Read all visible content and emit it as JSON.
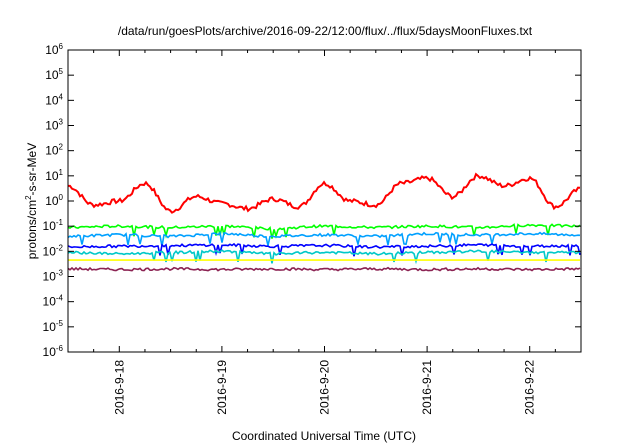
{
  "chart_data": {
    "type": "line",
    "title": "/data/run/goesPlots/archive/2016-09-22/12:00/flux/../flux/5daysMoonFluxes.txt",
    "xlabel": "Coordinated Universal Time (UTC)",
    "ylabel_parts": [
      "protons/cm",
      "2",
      "-s-sr-MeV"
    ],
    "y_scale": "log",
    "ylim": [
      1e-06,
      1000000.0
    ],
    "y_ticks": [
      {
        "base": "10",
        "exp": "-6",
        "value": 1e-06
      },
      {
        "base": "10",
        "exp": "-5",
        "value": 1e-05
      },
      {
        "base": "10",
        "exp": "-4",
        "value": 0.0001
      },
      {
        "base": "10",
        "exp": "-3",
        "value": 0.001
      },
      {
        "base": "10",
        "exp": "-2",
        "value": 0.01
      },
      {
        "base": "10",
        "exp": "-1",
        "value": 0.1
      },
      {
        "base": "10",
        "exp": "0",
        "value": 1
      },
      {
        "base": "10",
        "exp": "1",
        "value": 10
      },
      {
        "base": "10",
        "exp": "2",
        "value": 100
      },
      {
        "base": "10",
        "exp": "3",
        "value": 1000
      },
      {
        "base": "10",
        "exp": "4",
        "value": 10000
      },
      {
        "base": "10",
        "exp": "5",
        "value": 100000
      },
      {
        "base": "10",
        "exp": "6",
        "value": 1000000
      }
    ],
    "xlim": [
      "2016-09-17 12:00",
      "2016-09-22 12:00"
    ],
    "x_ticks": [
      "2016-9-18",
      "2016-9-19",
      "2016-9-20",
      "2016-9-21",
      "2016-9-22"
    ],
    "grid": false,
    "legend": "none",
    "series": [
      {
        "color": "#ff0000",
        "x": [
          "2016-09-17 12:00",
          "2016-09-17 18:00",
          "2016-09-18 00:00",
          "2016-09-18 06:00",
          "2016-09-18 12:00",
          "2016-09-18 18:00",
          "2016-09-19 00:00",
          "2016-09-19 06:00",
          "2016-09-19 12:00",
          "2016-09-19 18:00",
          "2016-09-20 00:00",
          "2016-09-20 06:00",
          "2016-09-20 12:00",
          "2016-09-20 18:00",
          "2016-09-21 00:00",
          "2016-09-21 06:00",
          "2016-09-21 12:00",
          "2016-09-21 18:00",
          "2016-09-22 00:00",
          "2016-09-22 06:00",
          "2016-09-22 12:00"
        ],
        "values": [
          4,
          0.7,
          1,
          5,
          0.4,
          1.5,
          0.8,
          0.5,
          1.2,
          0.6,
          5,
          1,
          0.7,
          5,
          8,
          1.5,
          10,
          4,
          8,
          0.6,
          3
        ]
      },
      {
        "color": "#00ff00",
        "x": [
          "2016-09-17 12:00",
          "2016-09-18 00:00",
          "2016-09-18 12:00",
          "2016-09-19 00:00",
          "2016-09-19 12:00",
          "2016-09-20 00:00",
          "2016-09-20 12:00",
          "2016-09-21 00:00",
          "2016-09-21 12:00",
          "2016-09-22 00:00",
          "2016-09-22 12:00"
        ],
        "values": [
          0.09,
          0.1,
          0.09,
          0.1,
          0.08,
          0.1,
          0.09,
          0.1,
          0.09,
          0.11,
          0.1
        ]
      },
      {
        "color": "#00a0ff",
        "x": [
          "2016-09-17 12:00",
          "2016-09-18 00:00",
          "2016-09-18 12:00",
          "2016-09-19 00:00",
          "2016-09-19 12:00",
          "2016-09-20 00:00",
          "2016-09-20 12:00",
          "2016-09-21 00:00",
          "2016-09-21 12:00",
          "2016-09-22 00:00",
          "2016-09-22 12:00"
        ],
        "values": [
          0.04,
          0.045,
          0.04,
          0.05,
          0.04,
          0.045,
          0.04,
          0.05,
          0.045,
          0.05,
          0.045
        ]
      },
      {
        "color": "#0000ff",
        "x": [
          "2016-09-17 12:00",
          "2016-09-18 00:00",
          "2016-09-18 12:00",
          "2016-09-19 00:00",
          "2016-09-19 12:00",
          "2016-09-20 00:00",
          "2016-09-20 12:00",
          "2016-09-21 00:00",
          "2016-09-21 12:00",
          "2016-09-22 00:00",
          "2016-09-22 12:00"
        ],
        "values": [
          0.015,
          0.016,
          0.017,
          0.018,
          0.016,
          0.017,
          0.015,
          0.016,
          0.018,
          0.016,
          0.017
        ]
      },
      {
        "color": "#00c8c8",
        "x": [
          "2016-09-17 12:00",
          "2016-09-18 00:00",
          "2016-09-18 12:00",
          "2016-09-19 00:00",
          "2016-09-19 12:00",
          "2016-09-20 00:00",
          "2016-09-20 12:00",
          "2016-09-21 00:00",
          "2016-09-21 12:00",
          "2016-09-22 00:00",
          "2016-09-22 12:00"
        ],
        "values": [
          0.009,
          0.008,
          0.009,
          0.01,
          0.008,
          0.009,
          0.008,
          0.009,
          0.01,
          0.009,
          0.009
        ]
      },
      {
        "color": "#ffff00",
        "x": [
          "2016-09-17 12:00",
          "2016-09-18 12:00",
          "2016-09-19 12:00",
          "2016-09-20 12:00",
          "2016-09-21 12:00",
          "2016-09-22 12:00"
        ],
        "values": [
          0.0045,
          0.0045,
          0.0045,
          0.0045,
          0.0045,
          0.0045
        ]
      },
      {
        "color": "#8b2252",
        "x": [
          "2016-09-17 12:00",
          "2016-09-18 00:00",
          "2016-09-18 12:00",
          "2016-09-19 00:00",
          "2016-09-19 12:00",
          "2016-09-20 00:00",
          "2016-09-20 12:00",
          "2016-09-21 00:00",
          "2016-09-21 12:00",
          "2016-09-22 00:00",
          "2016-09-22 12:00"
        ],
        "values": [
          0.002,
          0.0019,
          0.002,
          0.0019,
          0.002,
          0.0019,
          0.002,
          0.0019,
          0.002,
          0.0019,
          0.002
        ]
      }
    ]
  }
}
